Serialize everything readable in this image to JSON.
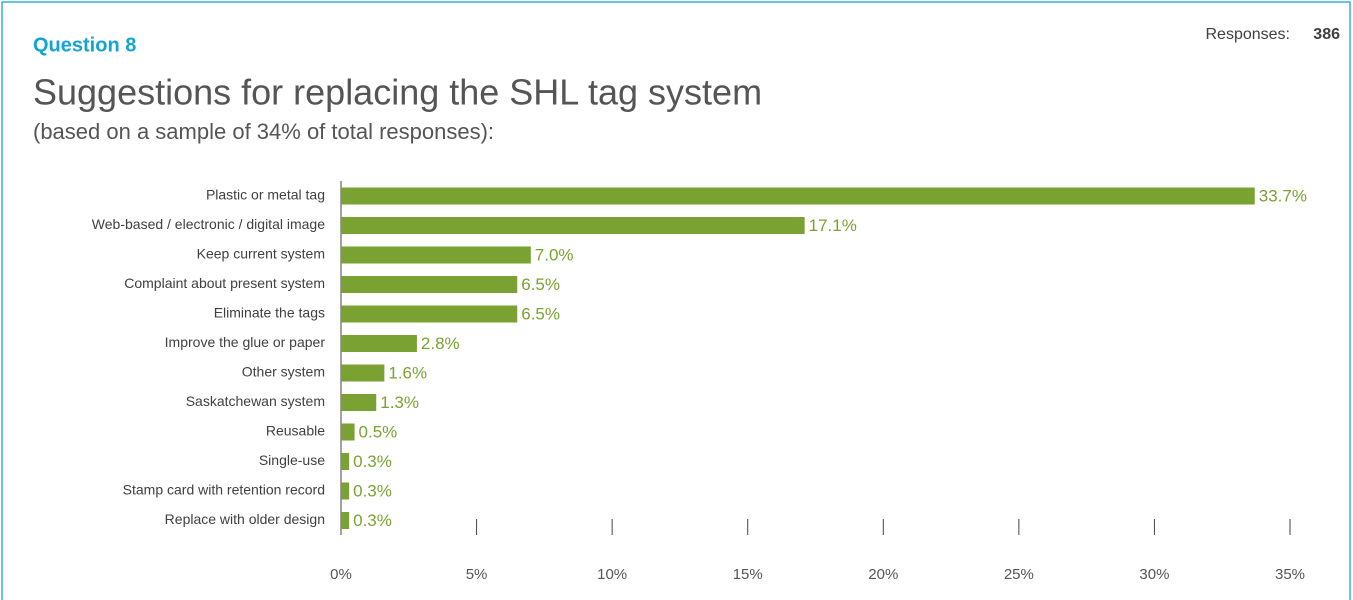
{
  "chart_data": {
    "type": "bar",
    "orientation": "horizontal",
    "header": "Question 8",
    "title": "Suggestions for replacing the SHL tag system",
    "subtitle": "(based on a sample of 34% of total responses):",
    "responses_label": "Responses:",
    "responses": 386,
    "categories": [
      "Plastic or metal tag",
      "Web-based / electronic / digital image",
      "Keep current system",
      "Complaint about present system",
      "Eliminate the tags",
      "Improve the glue or paper",
      "Other system",
      "Saskatchewan system",
      "Reusable",
      "Single-use",
      "Stamp card with retention record",
      "Replace with older design"
    ],
    "values": [
      33.7,
      17.1,
      7.0,
      6.5,
      6.5,
      2.8,
      1.6,
      1.3,
      0.5,
      0.3,
      0.3,
      0.3
    ],
    "value_labels": [
      "33.7%",
      "17.1%",
      "7.0%",
      "6.5%",
      "6.5%",
      "2.8%",
      "1.6%",
      "1.3%",
      "0.5%",
      "0.3%",
      "0.3%",
      "0.3%"
    ],
    "color": "#7aa232",
    "xlim": [
      0,
      35
    ],
    "xticks": [
      {
        "value": 0,
        "label": "0%"
      },
      {
        "value": 5,
        "label": "5%"
      },
      {
        "value": 10,
        "label": "10%"
      },
      {
        "value": 15,
        "label": "15%"
      },
      {
        "value": 20,
        "label": "20%"
      },
      {
        "value": 25,
        "label": "25%"
      },
      {
        "value": 30,
        "label": "30%"
      },
      {
        "value": 35,
        "label": "35%"
      }
    ]
  }
}
